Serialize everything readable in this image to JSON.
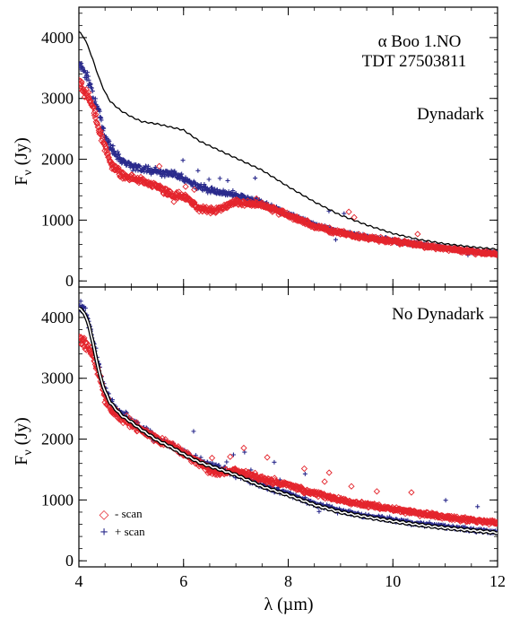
{
  "figure": {
    "x_axis_label": "λ (µm)",
    "y_axis_label_top": "F",
    "y_axis_label_sub": "ν",
    "y_axis_label_unit": " (Jy)"
  },
  "chart_data": [
    {
      "type": "scatter",
      "panel": "top",
      "annotations": [
        "α Boo     1.NO",
        "TDT 27503811",
        "Dynadark"
      ],
      "xlim": [
        4,
        12
      ],
      "ylim": [
        -100,
        4500
      ],
      "xticks": [
        4,
        6,
        8,
        10,
        12
      ],
      "yticks": [
        0,
        1000,
        2000,
        3000,
        4000
      ],
      "xlabel": "λ (µm)",
      "ylabel": "Fν (Jy)",
      "model_line": {
        "style": "single black line",
        "x": [
          4.0,
          4.1,
          4.2,
          4.3,
          4.4,
          4.5,
          4.6,
          4.8,
          5.0,
          5.2,
          5.5,
          5.8,
          6.0,
          6.3,
          6.6,
          7.0,
          7.5,
          8.0,
          8.5,
          9.0,
          9.5,
          10.0,
          10.5,
          11.0,
          11.5,
          12.0
        ],
        "y": [
          4100,
          4000,
          3800,
          3550,
          3300,
          3100,
          2950,
          2800,
          2700,
          2620,
          2580,
          2520,
          2480,
          2300,
          2180,
          2020,
          1820,
          1550,
          1300,
          1080,
          920,
          780,
          680,
          610,
          560,
          520
        ]
      },
      "series": [
        {
          "name": "+ scan",
          "color": "#2a2a8c",
          "marker": "plus",
          "x": [
            4.0,
            4.1,
            4.2,
            4.3,
            4.4,
            4.5,
            4.6,
            4.8,
            5.0,
            5.2,
            5.5,
            5.8,
            6.0,
            6.3,
            6.6,
            7.0,
            7.5,
            8.0,
            8.5,
            9.0,
            9.5,
            10.0,
            10.5,
            11.0,
            11.5,
            12.0
          ],
          "y": [
            3600,
            3450,
            3250,
            3000,
            2700,
            2400,
            2200,
            2000,
            1900,
            1850,
            1800,
            1760,
            1680,
            1550,
            1480,
            1420,
            1280,
            1100,
            920,
            800,
            720,
            660,
            600,
            540,
            490,
            450
          ]
        },
        {
          "name": "- scan",
          "color": "#e4252d",
          "marker": "diamond",
          "x": [
            4.0,
            4.1,
            4.2,
            4.3,
            4.4,
            4.5,
            4.6,
            4.8,
            5.0,
            5.2,
            5.5,
            5.8,
            6.0,
            6.3,
            6.6,
            7.0,
            7.5,
            8.0,
            8.5,
            9.0,
            9.5,
            10.0,
            10.5,
            11.0,
            11.5,
            12.0
          ],
          "y": [
            3300,
            3150,
            3000,
            2750,
            2450,
            2200,
            1950,
            1750,
            1700,
            1650,
            1550,
            1400,
            1400,
            1200,
            1150,
            1300,
            1250,
            1080,
            900,
            790,
            710,
            650,
            590,
            530,
            480,
            440
          ]
        }
      ]
    },
    {
      "type": "scatter",
      "panel": "bottom",
      "annotations": [
        "No Dynadark"
      ],
      "xlim": [
        4,
        12
      ],
      "ylim": [
        -100,
        4500
      ],
      "xticks": [
        4,
        6,
        8,
        10,
        12
      ],
      "xtick_labels": [
        "4",
        "6",
        "8",
        "10",
        "12"
      ],
      "yticks": [
        0,
        1000,
        2000,
        3000,
        4000
      ],
      "xlabel": "λ (µm)",
      "ylabel": "Fν (Jy)",
      "model_line": {
        "style": "white line with black outline",
        "x": [
          4.0,
          4.1,
          4.2,
          4.3,
          4.4,
          4.5,
          4.6,
          4.8,
          5.0,
          5.2,
          5.5,
          5.8,
          6.0,
          6.3,
          6.6,
          7.0,
          7.5,
          8.0,
          8.5,
          9.0,
          9.5,
          10.0,
          10.5,
          11.0,
          11.5,
          12.0
        ],
        "y": [
          4150,
          4080,
          3850,
          3450,
          3050,
          2780,
          2600,
          2400,
          2280,
          2150,
          1980,
          1850,
          1750,
          1620,
          1530,
          1410,
          1220,
          1080,
          920,
          800,
          720,
          650,
          590,
          540,
          500,
          460
        ]
      },
      "series": [
        {
          "name": "+ scan",
          "color": "#2a2a8c",
          "marker": "plus",
          "x": [
            4.0,
            4.1,
            4.2,
            4.3,
            4.4,
            4.5,
            4.6,
            4.8,
            5.0,
            5.2,
            5.5,
            5.8,
            6.0,
            6.3,
            6.6,
            7.0,
            7.5,
            8.0,
            8.5,
            9.0,
            9.5,
            10.0,
            10.5,
            11.0,
            11.5,
            12.0
          ],
          "y": [
            4200,
            4150,
            3900,
            3500,
            3100,
            2800,
            2620,
            2420,
            2300,
            2170,
            2000,
            1870,
            1770,
            1640,
            1550,
            1430,
            1240,
            1100,
            940,
            820,
            740,
            670,
            610,
            560,
            510,
            470
          ]
        },
        {
          "name": "- scan",
          "color": "#e4252d",
          "marker": "diamond",
          "x": [
            4.0,
            4.1,
            4.2,
            4.3,
            4.4,
            4.5,
            4.6,
            4.8,
            5.0,
            5.2,
            5.5,
            5.8,
            6.0,
            6.3,
            6.6,
            7.0,
            7.5,
            8.0,
            8.5,
            9.0,
            9.5,
            10.0,
            10.5,
            11.0,
            11.5,
            12.0
          ],
          "y": [
            3650,
            3600,
            3500,
            3300,
            3000,
            2700,
            2500,
            2350,
            2250,
            2150,
            2000,
            1880,
            1780,
            1600,
            1450,
            1480,
            1350,
            1250,
            1100,
            1000,
            920,
            850,
            780,
            720,
            670,
            620
          ]
        }
      ],
      "legend": {
        "placement": "bottom-left",
        "entries": [
          {
            "symbol": "◇",
            "label": "- scan",
            "color": "#e4252d"
          },
          {
            "symbol": "+",
            "label": "+ scan",
            "color": "#2a2a8c"
          }
        ]
      }
    }
  ]
}
